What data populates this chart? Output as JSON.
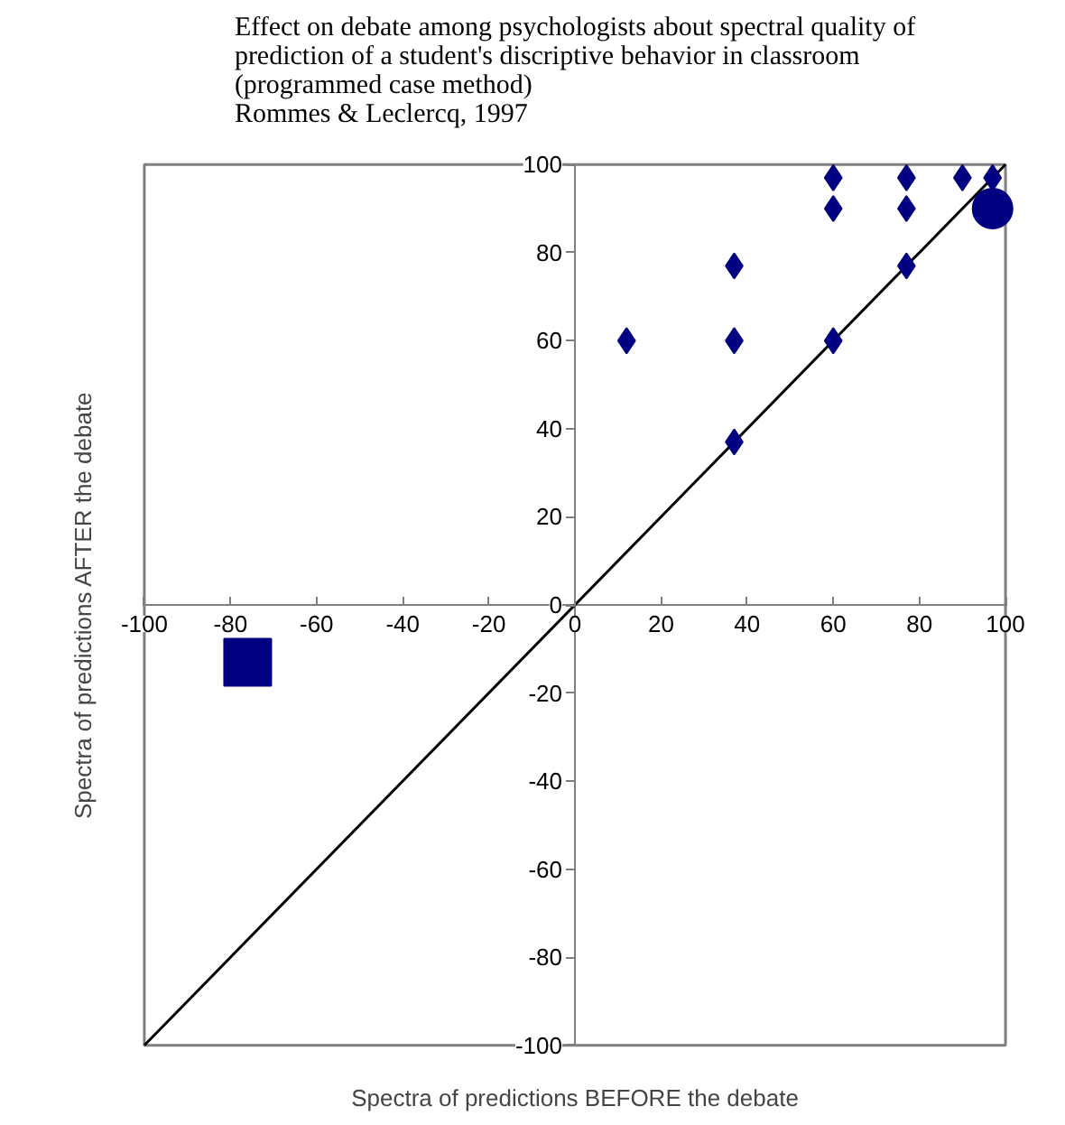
{
  "chart_data": {
    "type": "scatter",
    "title": "Effect on debate among psychologists about spectral quality of\nprediction of a student's discriptive behavior in classroom\n(programmed case method)\nRommes & Leclercq, 1997",
    "xlabel": "Spectra of predictions BEFORE the debate",
    "ylabel": "Spectra of predictions AFTER the debate",
    "xlim": [
      -100,
      100
    ],
    "ylim": [
      -100,
      100
    ],
    "xticks": [
      -100,
      -80,
      -60,
      -40,
      -20,
      0,
      20,
      40,
      60,
      80,
      100
    ],
    "yticks": [
      -100,
      -80,
      -60,
      -40,
      -20,
      0,
      20,
      40,
      60,
      80,
      100
    ],
    "grid": false,
    "series": [
      {
        "type": "line",
        "color": "#000000",
        "x": [
          -100,
          100
        ],
        "values": [
          -100,
          100
        ],
        "marker": "none"
      },
      {
        "color": "#000080",
        "marker": "diamond",
        "x": [
          12,
          37,
          37,
          37,
          60,
          60,
          60,
          77,
          77,
          77,
          90,
          97
        ],
        "values": [
          60,
          77,
          60,
          37,
          97,
          90,
          60,
          97,
          90,
          77,
          97,
          97
        ]
      },
      {
        "type": "scatter",
        "color": "#000080",
        "marker": "circle",
        "x": [
          97
        ],
        "values": [
          90
        ]
      },
      {
        "type": "scatter",
        "color": "#000080",
        "marker": "square",
        "x": [
          -76
        ],
        "values": [
          -13
        ]
      }
    ]
  }
}
